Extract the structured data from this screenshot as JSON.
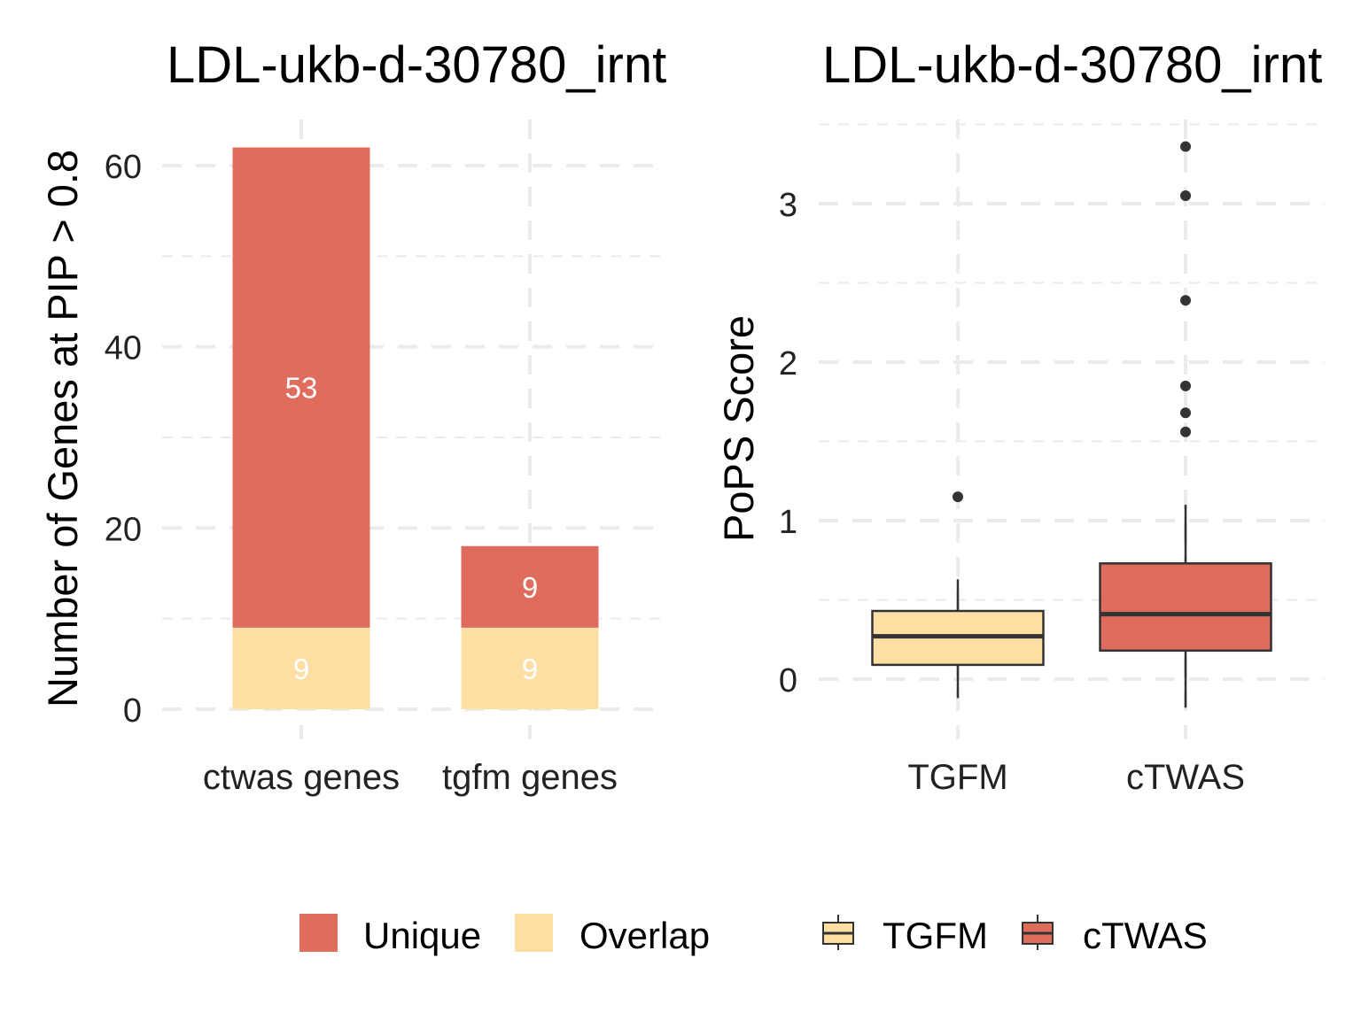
{
  "colors": {
    "unique": "#E06C5D",
    "overlap": "#FEDFA3",
    "tgfm": "#FEDFA3",
    "ctwas": "#E06C5D",
    "box_line": "#333333",
    "grid": "#EBEBEB",
    "text": "#000000"
  },
  "chart_data": [
    {
      "type": "bar",
      "stacked": true,
      "title": "LDL-ukb-d-30780_irnt",
      "xlabel": "",
      "ylabel": "Number of Genes at PIP > 0.8",
      "categories": [
        "ctwas genes",
        "tgfm genes"
      ],
      "series": [
        {
          "name": "Overlap",
          "values": [
            9,
            9
          ],
          "labels": [
            "9",
            "9"
          ]
        },
        {
          "name": "Unique",
          "values": [
            53,
            9
          ],
          "labels": [
            "53",
            "9"
          ]
        }
      ],
      "ylim": [
        0,
        64
      ],
      "yticks": [
        0,
        20,
        40,
        60
      ],
      "ytick_labels": [
        "0",
        "20",
        "40",
        "60"
      ],
      "grid": true,
      "legend": {
        "position": "bottom",
        "entries": [
          "Unique",
          "Overlap"
        ]
      }
    },
    {
      "type": "box",
      "title": "LDL-ukb-d-30780_irnt",
      "xlabel": "",
      "ylabel": "PoPS Score",
      "categories": [
        "TGFM",
        "cTWAS"
      ],
      "boxes": [
        {
          "name": "TGFM",
          "whisker_low": -0.12,
          "q1": 0.09,
          "median": 0.27,
          "q3": 0.43,
          "whisker_high": 0.63,
          "outliers": [
            1.15
          ]
        },
        {
          "name": "cTWAS",
          "whisker_low": -0.18,
          "q1": 0.18,
          "median": 0.41,
          "q3": 0.73,
          "whisker_high": 1.1,
          "outliers": [
            1.56,
            1.68,
            1.85,
            2.39,
            3.05,
            3.36
          ]
        }
      ],
      "ylim": [
        -0.35,
        3.53
      ],
      "yticks": [
        0,
        1,
        2,
        3
      ],
      "ytick_labels": [
        "0",
        "1",
        "2",
        "3"
      ],
      "grid": true,
      "legend": {
        "position": "bottom",
        "entries": [
          "TGFM",
          "cTWAS"
        ]
      }
    }
  ]
}
